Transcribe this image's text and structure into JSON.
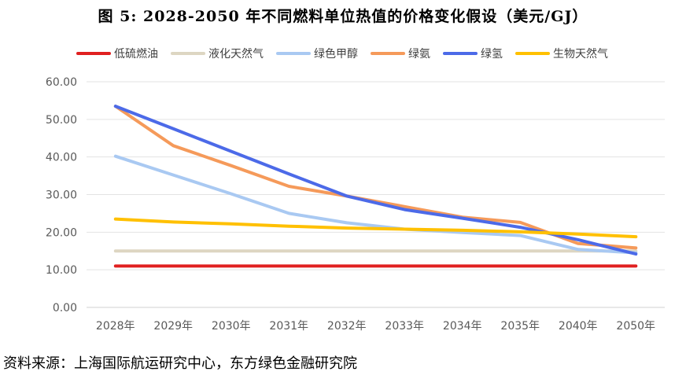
{
  "title": "图 5: 2028-2050 年不同燃料单位热值的价格变化假设（美元/GJ）",
  "source": "资料来源：上海国际航运研究中心，东方绿色金融研究院",
  "chart_data": {
    "type": "line",
    "categories": [
      "2028年",
      "2029年",
      "2030年",
      "2031年",
      "2032年",
      "2033年",
      "2034年",
      "2035年",
      "2040年",
      "2050年"
    ],
    "ylim": [
      0,
      60
    ],
    "yticks": [
      "0.00",
      "10.00",
      "20.00",
      "30.00",
      "40.00",
      "50.00",
      "60.00"
    ],
    "grid": true,
    "legend_position": "top",
    "series": [
      {
        "name": "低硫燃油",
        "color": "#e02020",
        "values": [
          11.0,
          11.0,
          11.0,
          11.0,
          11.0,
          11.0,
          11.0,
          11.0,
          11.0,
          11.0
        ]
      },
      {
        "name": "液化天然气",
        "color": "#ddd6c2",
        "values": [
          15.0,
          15.0,
          15.0,
          15.0,
          15.0,
          15.0,
          15.0,
          15.0,
          15.0,
          15.0
        ]
      },
      {
        "name": "绿色甲醇",
        "color": "#a9c9f2",
        "values": [
          40.2,
          35.2,
          30.2,
          25.0,
          22.5,
          20.8,
          19.9,
          19.1,
          15.4,
          14.5
        ]
      },
      {
        "name": "绿氨",
        "color": "#f59a5a",
        "values": [
          53.5,
          43.0,
          37.7,
          32.2,
          29.6,
          26.8,
          24.0,
          22.6,
          17.0,
          15.8
        ]
      },
      {
        "name": "绿氢",
        "color": "#4c6ae8",
        "values": [
          53.5,
          47.5,
          41.5,
          35.5,
          29.6,
          26.0,
          23.7,
          21.3,
          18.0,
          14.2
        ]
      },
      {
        "name": "生物天然气",
        "color": "#ffc000",
        "values": [
          23.5,
          22.7,
          22.2,
          21.6,
          21.1,
          20.8,
          20.5,
          20.1,
          19.5,
          18.8
        ]
      }
    ]
  }
}
